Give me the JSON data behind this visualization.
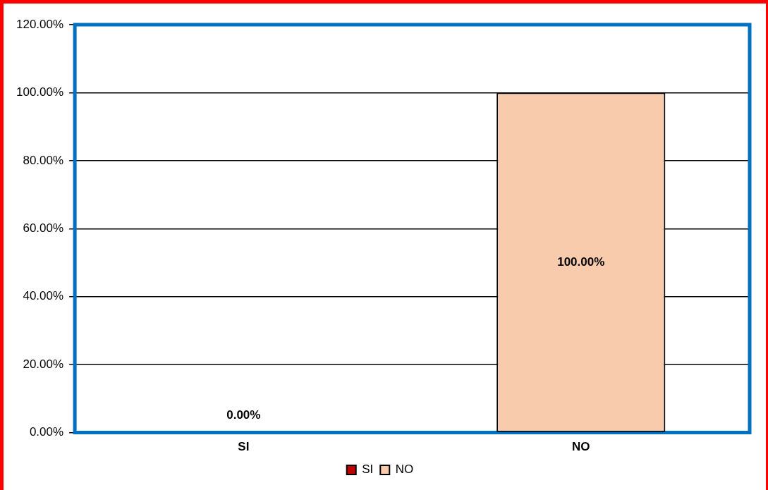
{
  "chart_data": {
    "type": "bar",
    "categories": [
      "SI",
      "NO"
    ],
    "series": [
      {
        "name": "SI",
        "color": "#c00000",
        "values": [
          0,
          null
        ],
        "value_labels": [
          "0.00%",
          null
        ]
      },
      {
        "name": "NO",
        "color": "#f8cbad",
        "values": [
          null,
          100
        ],
        "value_labels": [
          null,
          "100.00%"
        ]
      }
    ],
    "ylim": [
      0,
      120
    ],
    "yticks": [
      {
        "value": 0,
        "label": "0.00%"
      },
      {
        "value": 20,
        "label": "20.00%"
      },
      {
        "value": 40,
        "label": "40.00%"
      },
      {
        "value": 60,
        "label": "60.00%"
      },
      {
        "value": 80,
        "label": "80.00%"
      },
      {
        "value": 100,
        "label": "100.00%"
      },
      {
        "value": 120,
        "label": "120.00%"
      }
    ],
    "grid": "y",
    "legend": "bottom"
  }
}
